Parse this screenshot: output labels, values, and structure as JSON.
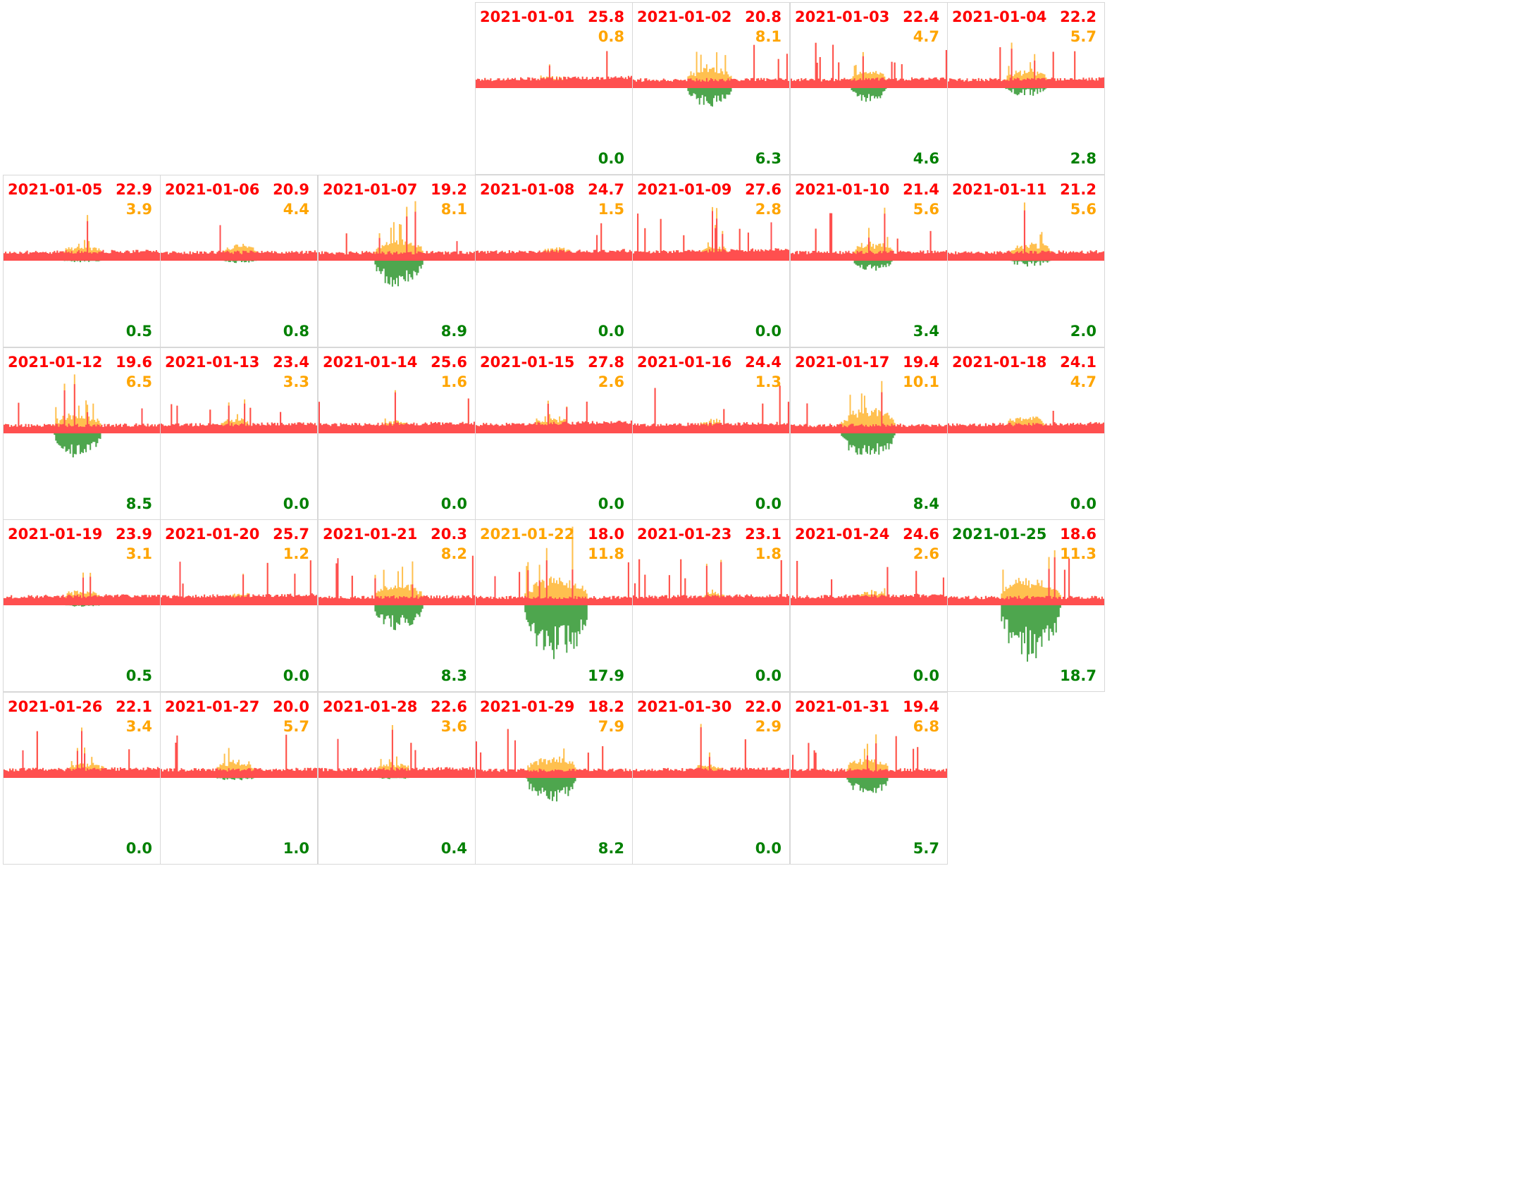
{
  "colors": {
    "grid": "#ff4f4f",
    "pv": "#ffc04f",
    "battery": "#4ea64e",
    "label_red": "#ff0000",
    "label_orange": "#ffa500",
    "label_green": "#008000"
  },
  "calendar": {
    "first_weekday_column": 4,
    "columns": 7
  },
  "chart_data": {
    "type": "area",
    "series_keys": [
      "grid",
      "pv",
      "battery"
    ],
    "days": [
      {
        "date": "2021-01-01",
        "grid": "25.8",
        "pv": "0.8",
        "battery": "0.0",
        "date_color": "red"
      },
      {
        "date": "2021-01-02",
        "grid": "20.8",
        "pv": "8.1",
        "battery": "6.3",
        "date_color": "red"
      },
      {
        "date": "2021-01-03",
        "grid": "22.4",
        "pv": "4.7",
        "battery": "4.6",
        "date_color": "red"
      },
      {
        "date": "2021-01-04",
        "grid": "22.2",
        "pv": "5.7",
        "battery": "2.8",
        "date_color": "red"
      },
      {
        "date": "2021-01-05",
        "grid": "22.9",
        "pv": "3.9",
        "battery": "0.5",
        "date_color": "red"
      },
      {
        "date": "2021-01-06",
        "grid": "20.9",
        "pv": "4.4",
        "battery": "0.8",
        "date_color": "red"
      },
      {
        "date": "2021-01-07",
        "grid": "19.2",
        "pv": "8.1",
        "battery": "8.9",
        "date_color": "red"
      },
      {
        "date": "2021-01-08",
        "grid": "24.7",
        "pv": "1.5",
        "battery": "0.0",
        "date_color": "red"
      },
      {
        "date": "2021-01-09",
        "grid": "27.6",
        "pv": "2.8",
        "battery": "0.0",
        "date_color": "red"
      },
      {
        "date": "2021-01-10",
        "grid": "21.4",
        "pv": "5.6",
        "battery": "3.4",
        "date_color": "red"
      },
      {
        "date": "2021-01-11",
        "grid": "21.2",
        "pv": "5.6",
        "battery": "2.0",
        "date_color": "red"
      },
      {
        "date": "2021-01-12",
        "grid": "19.6",
        "pv": "6.5",
        "battery": "8.5",
        "date_color": "red"
      },
      {
        "date": "2021-01-13",
        "grid": "23.4",
        "pv": "3.3",
        "battery": "0.0",
        "date_color": "red"
      },
      {
        "date": "2021-01-14",
        "grid": "25.6",
        "pv": "1.6",
        "battery": "0.0",
        "date_color": "red"
      },
      {
        "date": "2021-01-15",
        "grid": "27.8",
        "pv": "2.6",
        "battery": "0.0",
        "date_color": "red"
      },
      {
        "date": "2021-01-16",
        "grid": "24.4",
        "pv": "1.3",
        "battery": "0.0",
        "date_color": "red"
      },
      {
        "date": "2021-01-17",
        "grid": "19.4",
        "pv": "10.1",
        "battery": "8.4",
        "date_color": "red"
      },
      {
        "date": "2021-01-18",
        "grid": "24.1",
        "pv": "4.7",
        "battery": "0.0",
        "date_color": "red"
      },
      {
        "date": "2021-01-19",
        "grid": "23.9",
        "pv": "3.1",
        "battery": "0.5",
        "date_color": "red"
      },
      {
        "date": "2021-01-20",
        "grid": "25.7",
        "pv": "1.2",
        "battery": "0.0",
        "date_color": "red"
      },
      {
        "date": "2021-01-21",
        "grid": "20.3",
        "pv": "8.2",
        "battery": "8.3",
        "date_color": "red"
      },
      {
        "date": "2021-01-22",
        "grid": "18.0",
        "pv": "11.8",
        "battery": "17.9",
        "date_color": "orange"
      },
      {
        "date": "2021-01-23",
        "grid": "23.1",
        "pv": "1.8",
        "battery": "0.0",
        "date_color": "red"
      },
      {
        "date": "2021-01-24",
        "grid": "24.6",
        "pv": "2.6",
        "battery": "0.0",
        "date_color": "red"
      },
      {
        "date": "2021-01-25",
        "grid": "18.6",
        "pv": "11.3",
        "battery": "18.7",
        "date_color": "green"
      },
      {
        "date": "2021-01-26",
        "grid": "22.1",
        "pv": "3.4",
        "battery": "0.0",
        "date_color": "red"
      },
      {
        "date": "2021-01-27",
        "grid": "20.0",
        "pv": "5.7",
        "battery": "1.0",
        "date_color": "red"
      },
      {
        "date": "2021-01-28",
        "grid": "22.6",
        "pv": "3.6",
        "battery": "0.4",
        "date_color": "red"
      },
      {
        "date": "2021-01-29",
        "grid": "18.2",
        "pv": "7.9",
        "battery": "8.2",
        "date_color": "red"
      },
      {
        "date": "2021-01-30",
        "grid": "22.0",
        "pv": "2.9",
        "battery": "0.0",
        "date_color": "red"
      },
      {
        "date": "2021-01-31",
        "grid": "19.4",
        "pv": "6.8",
        "battery": "5.7",
        "date_color": "red"
      }
    ]
  }
}
